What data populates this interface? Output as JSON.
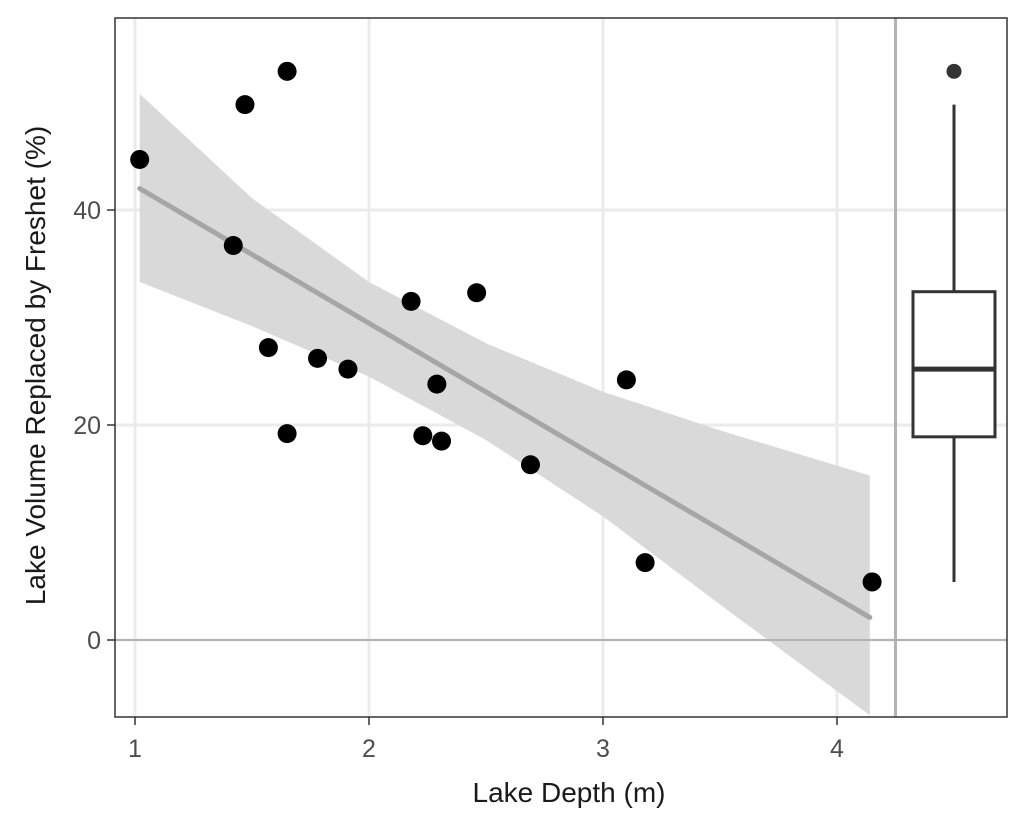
{
  "chart_data": {
    "type": "scatter",
    "xlabel": "Lake Depth (m)",
    "ylabel": "Lake Volume Replaced by Freshet (%)",
    "xlim": [
      0.9,
      4.7
    ],
    "ylim": [
      -7,
      58
    ],
    "x_ticks": [
      1,
      2,
      3,
      4
    ],
    "x_tick_labels": [
      "1",
      "2",
      "3",
      "4"
    ],
    "y_ticks": [
      0,
      20,
      40
    ],
    "y_tick_labels": [
      "0",
      "20",
      "40"
    ],
    "grid": true,
    "points": [
      {
        "x": 1.02,
        "y": 44.7
      },
      {
        "x": 1.42,
        "y": 36.7
      },
      {
        "x": 1.47,
        "y": 49.8
      },
      {
        "x": 1.57,
        "y": 27.2
      },
      {
        "x": 1.65,
        "y": 52.9
      },
      {
        "x": 1.65,
        "y": 19.2
      },
      {
        "x": 1.78,
        "y": 26.2
      },
      {
        "x": 1.91,
        "y": 25.2
      },
      {
        "x": 2.18,
        "y": 31.5
      },
      {
        "x": 2.23,
        "y": 19.0
      },
      {
        "x": 2.29,
        "y": 23.8
      },
      {
        "x": 2.31,
        "y": 18.5
      },
      {
        "x": 2.46,
        "y": 32.3
      },
      {
        "x": 2.69,
        "y": 16.3
      },
      {
        "x": 3.1,
        "y": 24.2
      },
      {
        "x": 3.18,
        "y": 7.2
      },
      {
        "x": 4.15,
        "y": 5.4
      }
    ],
    "fit_line": {
      "x": [
        1.02,
        4.14
      ],
      "y": [
        42.0,
        2.1
      ]
    },
    "confidence_band": {
      "x": [
        1.02,
        1.5,
        2.0,
        2.5,
        3.0,
        3.5,
        4.14
      ],
      "upper": [
        50.8,
        41.1,
        33.3,
        27.6,
        23.1,
        19.5,
        15.3
      ],
      "lower": [
        33.3,
        29.2,
        24.5,
        18.6,
        11.5,
        3.3,
        -7.0
      ]
    },
    "hline_y": 0,
    "vline_x": 4.25,
    "boxplot": {
      "x": 4.5,
      "min": 5.4,
      "q1": 18.9,
      "median": 25.2,
      "q3": 32.4,
      "max": 49.8,
      "outliers": [
        52.9
      ]
    },
    "colors": {
      "points": "#000000",
      "fit_line": "#a6a6a6",
      "band": "#d9d9d9",
      "grid": "#ebebeb",
      "reference_lines": "#b3b3b3",
      "boxplot": "#333333"
    }
  }
}
